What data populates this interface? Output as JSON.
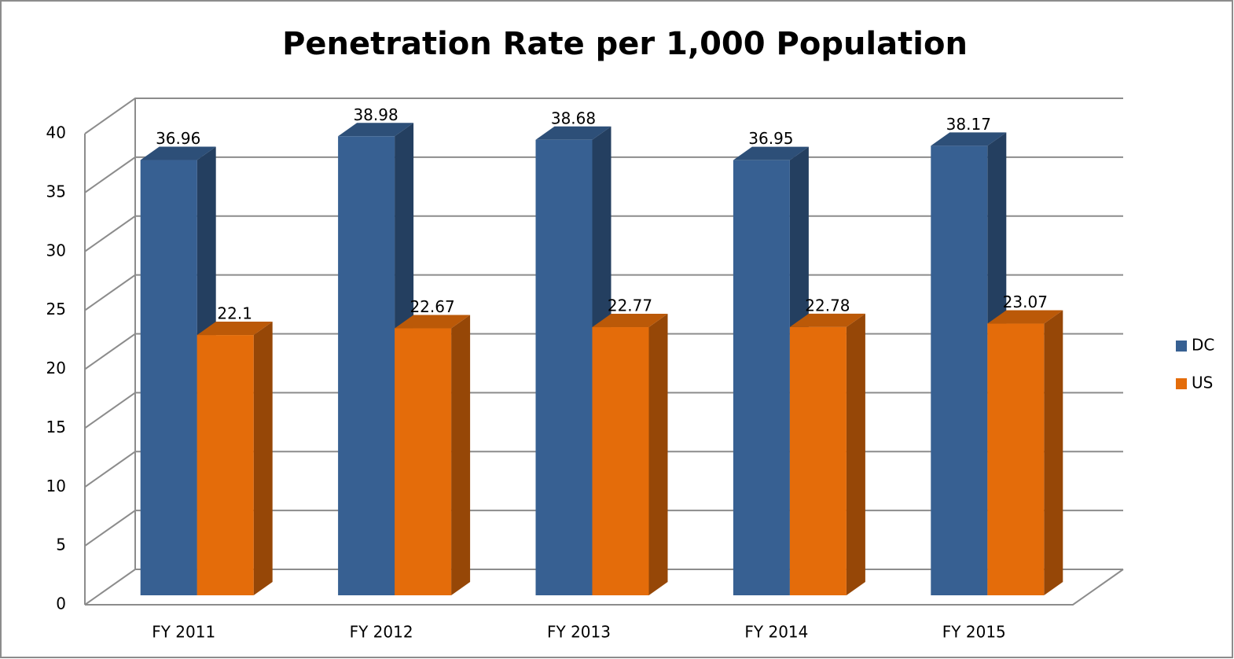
{
  "chart_data": {
    "type": "bar3d",
    "title": "Penetration Rate per 1,000 Population",
    "categories": [
      "FY 2011",
      "FY 2012",
      "FY 2013",
      "FY 2014",
      "FY 2015"
    ],
    "series": [
      {
        "name": "DC",
        "color": "#376092",
        "values": [
          36.96,
          38.98,
          38.68,
          36.95,
          38.17
        ]
      },
      {
        "name": "US",
        "color": "#e46c0a",
        "values": [
          22.1,
          22.67,
          22.77,
          22.78,
          23.07
        ]
      }
    ],
    "ylim": [
      0,
      40
    ],
    "yticks": [
      0,
      5,
      10,
      15,
      20,
      25,
      30,
      35,
      40
    ],
    "grid": true,
    "legend": "right"
  }
}
